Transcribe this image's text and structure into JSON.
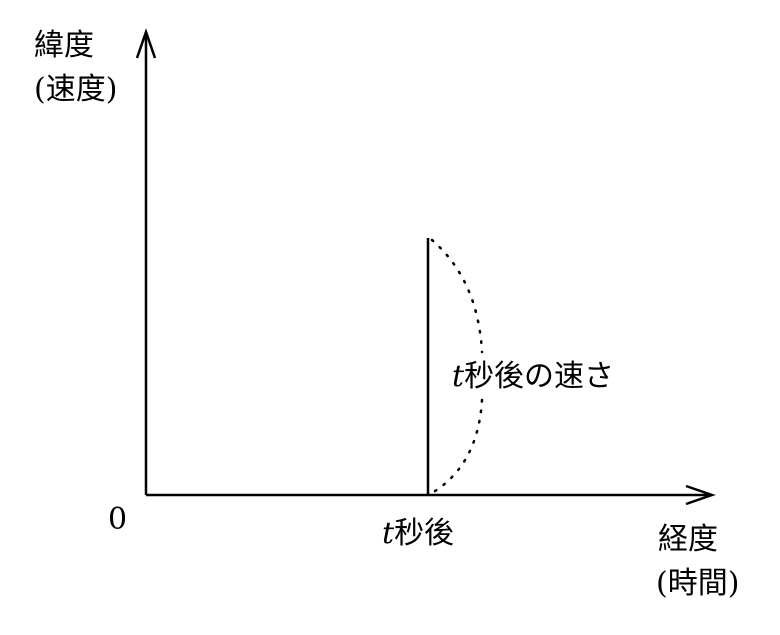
{
  "diagram": {
    "y_axis_label_line1": "緯度",
    "y_axis_label_line2": "(速度)",
    "x_axis_label_line1": "経度",
    "x_axis_label_line2": "(時間)",
    "origin_label": "0",
    "t_variable": "t",
    "x_marker_suffix": "秒後",
    "brace_label_suffix": "秒後の速さ"
  }
}
